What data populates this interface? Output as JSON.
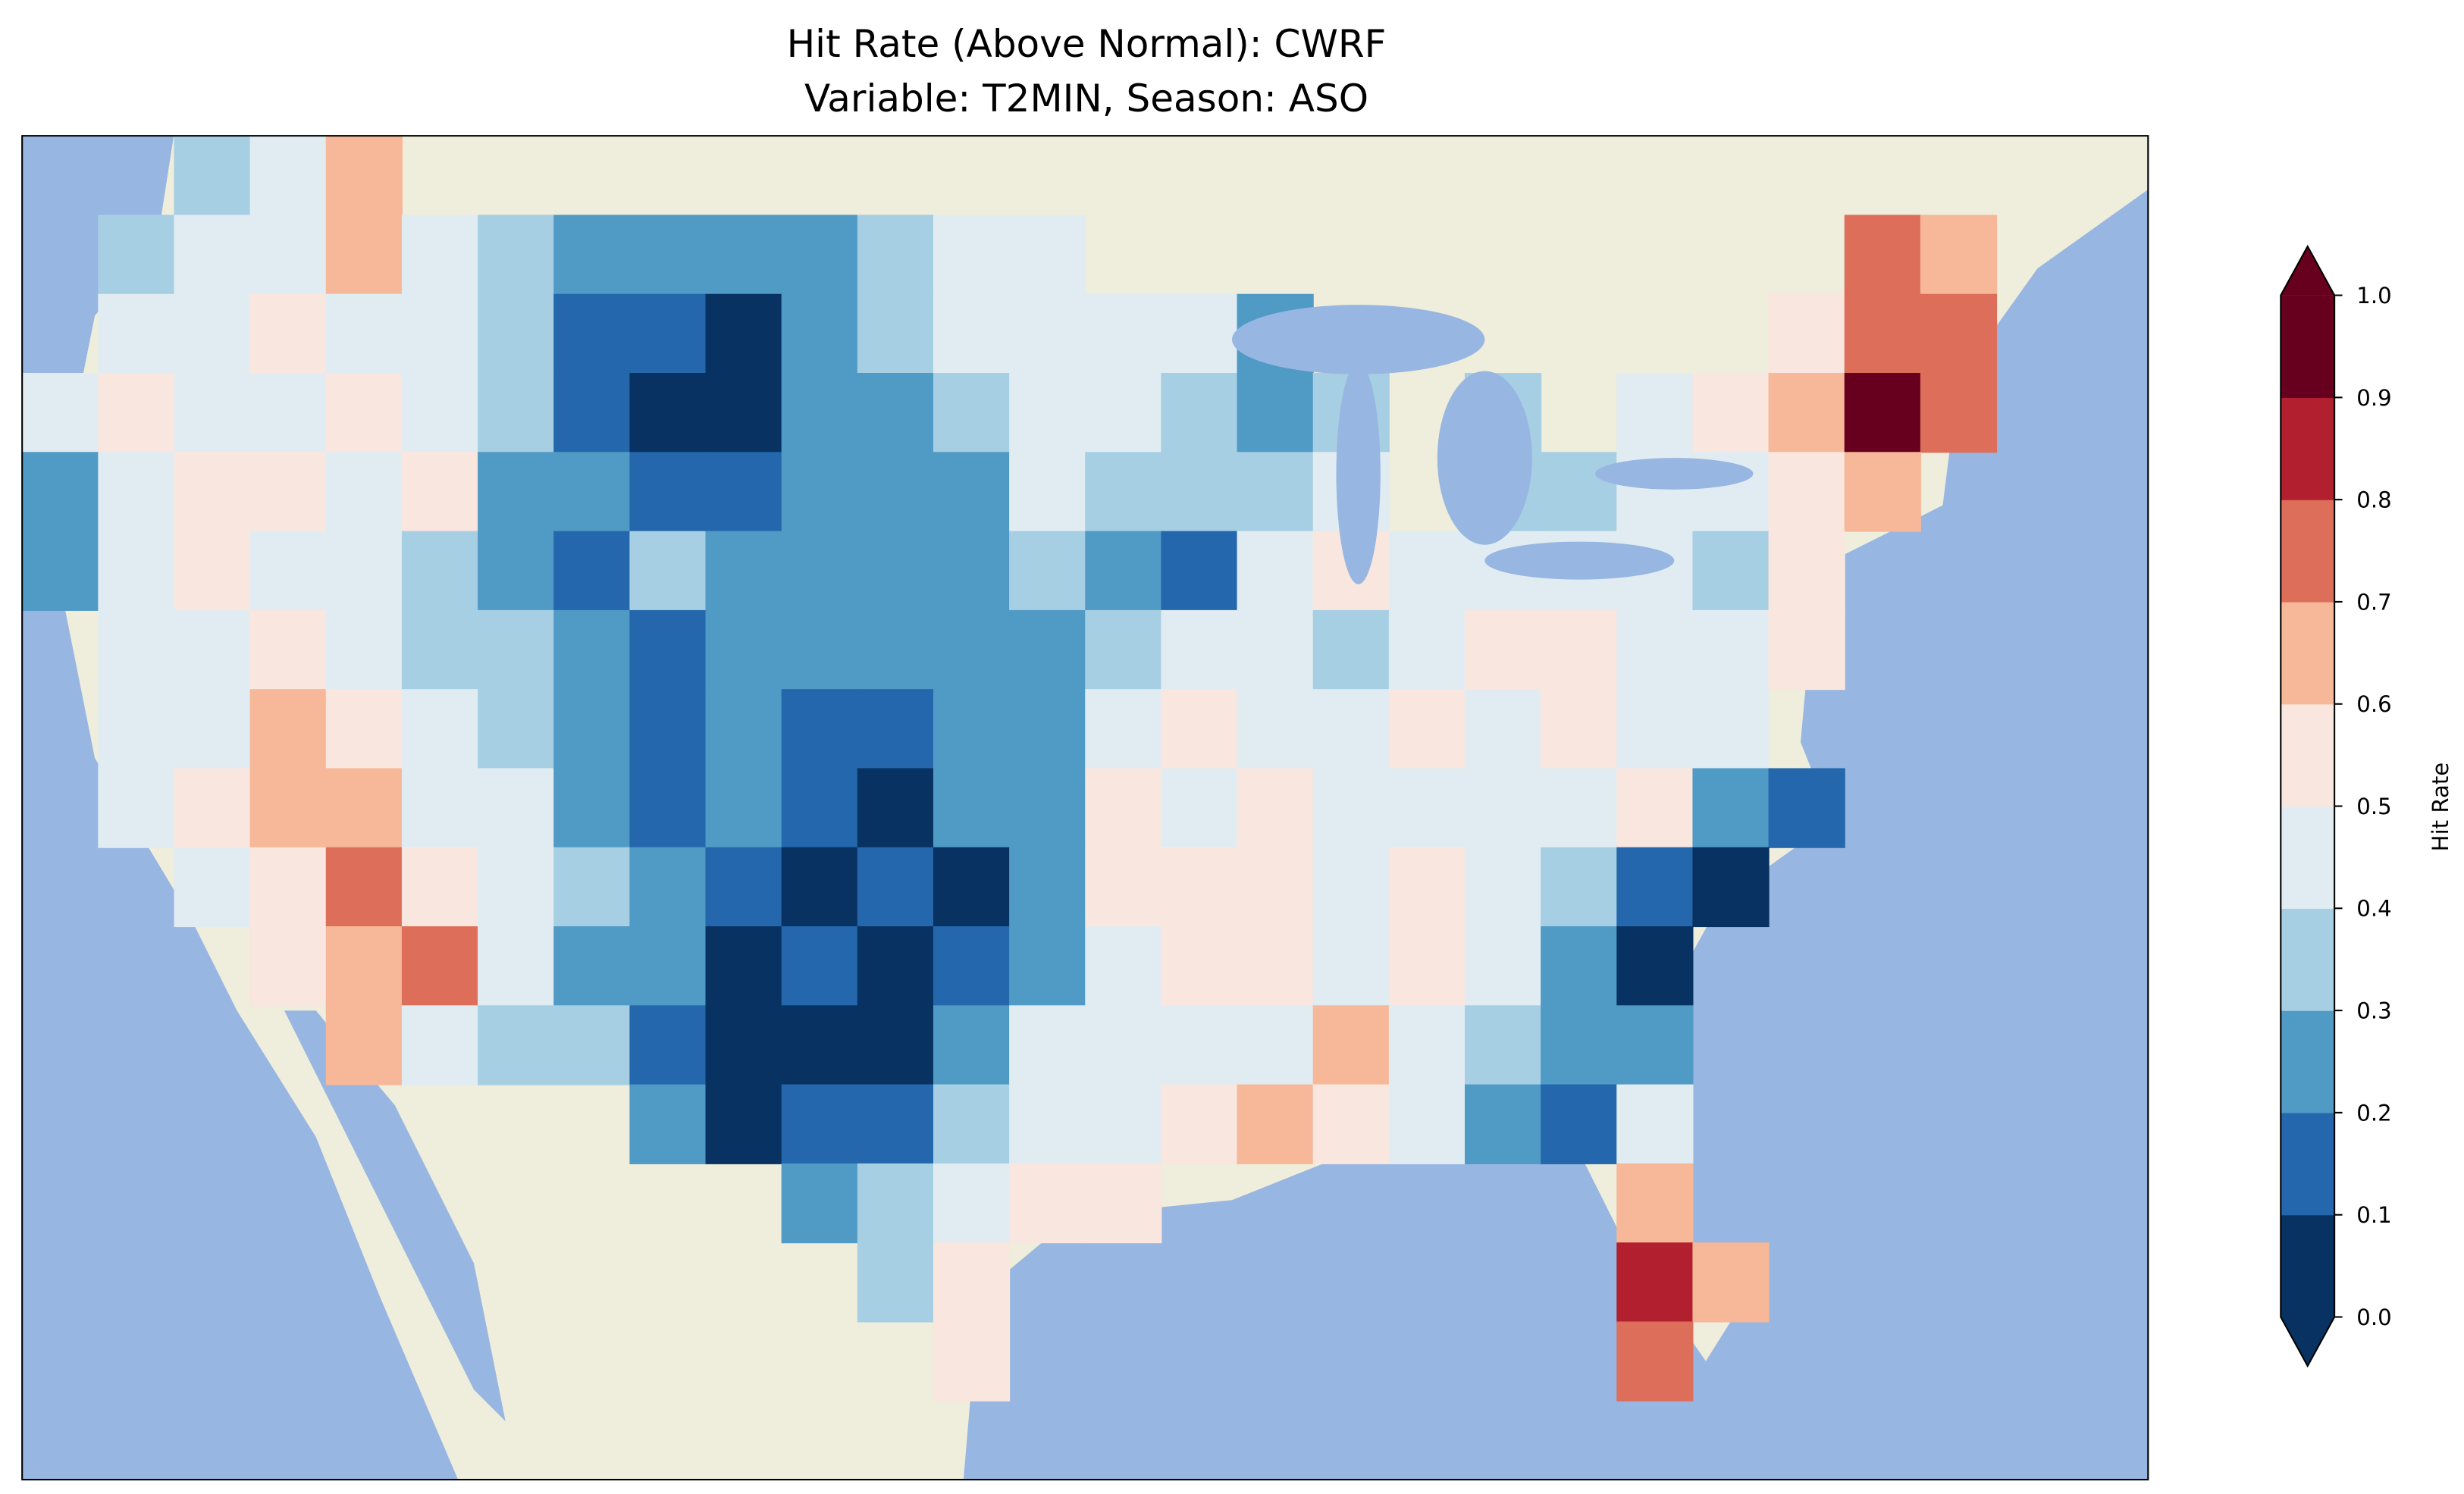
{
  "chart_data": {
    "type": "heatmap",
    "title_line1": "Hit Rate (Above Normal): CWRF",
    "title_line2": "Variable: T2MIN, Season: ASO",
    "colorbar_label": "Hit Rate",
    "colorbar_ticks": [
      "0.0",
      "0.1",
      "0.2",
      "0.3",
      "0.4",
      "0.5",
      "0.6",
      "0.7",
      "0.8",
      "0.9",
      "1.0"
    ],
    "range": [
      0.0,
      1.0
    ],
    "extend": "both",
    "colors": [
      "#083262",
      "#2467ac",
      "#509ac6",
      "#a6cfe3",
      "#e1ecf2",
      "#f9e6de",
      "#f6b898",
      "#dd6f5a",
      "#b21f2e",
      "#67001f"
    ],
    "ocean_color": "#97b6e1",
    "land_color": "#efeddb",
    "grid_values_coarse": [
      [
        null,
        null,
        0.35,
        0.45,
        0.65,
        null,
        null,
        null,
        null,
        null,
        null,
        null,
        null,
        null,
        null,
        null,
        null,
        null,
        null,
        null,
        null,
        null,
        null,
        null,
        null,
        null,
        null,
        null
      ],
      [
        null,
        0.35,
        0.4,
        0.45,
        0.65,
        0.45,
        0.3,
        0.25,
        0.2,
        0.2,
        0.2,
        0.35,
        0.45,
        0.45,
        null,
        null,
        null,
        null,
        null,
        null,
        null,
        null,
        null,
        null,
        0.7,
        0.65,
        null,
        null
      ],
      [
        null,
        0.45,
        0.45,
        0.55,
        0.45,
        0.45,
        0.3,
        0.15,
        0.15,
        0.05,
        0.25,
        0.3,
        0.45,
        0.45,
        0.45,
        0.45,
        0.25,
        null,
        null,
        null,
        null,
        null,
        null,
        0.55,
        0.75,
        0.75,
        null,
        null
      ],
      [
        0.45,
        0.55,
        0.45,
        0.45,
        0.55,
        0.45,
        0.35,
        0.15,
        0.05,
        0.05,
        0.25,
        0.25,
        0.35,
        0.45,
        0.45,
        0.35,
        0.25,
        0.35,
        null,
        0.35,
        null,
        0.45,
        0.55,
        0.65,
        0.95,
        0.75,
        null,
        null
      ],
      [
        0.25,
        0.45,
        0.55,
        0.55,
        0.45,
        0.55,
        0.25,
        0.25,
        0.15,
        0.15,
        0.25,
        0.25,
        0.25,
        0.45,
        0.35,
        0.35,
        0.35,
        0.45,
        null,
        0.35,
        0.35,
        0.45,
        0.45,
        0.55,
        0.65,
        null,
        null,
        null
      ],
      [
        0.25,
        0.45,
        0.55,
        0.45,
        0.45,
        0.35,
        0.25,
        0.15,
        0.35,
        0.25,
        0.25,
        0.25,
        0.25,
        0.35,
        0.25,
        0.15,
        0.45,
        0.55,
        0.45,
        0.45,
        0.45,
        0.45,
        0.35,
        0.55,
        null,
        null,
        null,
        null
      ],
      [
        null,
        0.45,
        0.45,
        0.55,
        0.45,
        0.35,
        0.35,
        0.25,
        0.15,
        0.25,
        0.25,
        0.25,
        0.25,
        0.25,
        0.35,
        0.45,
        0.45,
        0.35,
        0.45,
        0.55,
        0.55,
        0.45,
        0.45,
        0.55,
        null,
        null,
        null,
        null
      ],
      [
        null,
        0.45,
        0.45,
        0.65,
        0.55,
        0.45,
        0.35,
        0.25,
        0.15,
        0.25,
        0.15,
        0.15,
        0.25,
        0.25,
        0.45,
        0.55,
        0.45,
        0.45,
        0.55,
        0.45,
        0.55,
        0.45,
        0.45,
        null,
        null,
        null,
        null,
        null
      ],
      [
        null,
        0.45,
        0.55,
        0.65,
        0.65,
        0.45,
        0.45,
        0.25,
        0.15,
        0.25,
        0.15,
        0.05,
        0.25,
        0.25,
        0.55,
        0.45,
        0.55,
        0.45,
        0.45,
        0.45,
        0.45,
        0.55,
        0.25,
        0.15,
        null,
        null,
        null,
        null
      ],
      [
        null,
        null,
        0.45,
        0.55,
        0.75,
        0.55,
        0.45,
        0.35,
        0.25,
        0.15,
        0.05,
        0.15,
        0.05,
        0.25,
        0.55,
        0.55,
        0.55,
        0.45,
        0.55,
        0.45,
        0.35,
        0.15,
        0.05,
        null,
        null,
        null,
        null,
        null
      ],
      [
        null,
        null,
        null,
        0.55,
        0.65,
        0.75,
        0.45,
        0.25,
        0.25,
        0.05,
        0.15,
        0.05,
        0.15,
        0.25,
        0.45,
        0.55,
        0.55,
        0.45,
        0.55,
        0.45,
        0.25,
        0.05,
        null,
        null,
        null,
        null,
        null,
        null
      ],
      [
        null,
        null,
        null,
        null,
        0.65,
        0.45,
        0.35,
        0.35,
        0.15,
        0.05,
        0.05,
        0.05,
        0.25,
        0.45,
        0.45,
        0.45,
        0.45,
        0.65,
        0.45,
        0.35,
        0.25,
        0.25,
        null,
        null,
        null,
        null,
        null,
        null
      ],
      [
        null,
        null,
        null,
        null,
        null,
        null,
        null,
        null,
        0.25,
        0.05,
        0.15,
        0.15,
        0.35,
        0.45,
        0.45,
        0.55,
        0.65,
        0.55,
        0.45,
        0.25,
        0.15,
        0.45,
        null,
        null,
        null,
        null,
        null,
        null
      ],
      [
        null,
        null,
        null,
        null,
        null,
        null,
        null,
        null,
        null,
        null,
        0.25,
        0.35,
        0.45,
        0.55,
        0.55,
        null,
        null,
        null,
        null,
        null,
        null,
        0.65,
        null,
        null,
        null,
        null,
        null,
        null
      ],
      [
        null,
        null,
        null,
        null,
        null,
        null,
        null,
        null,
        null,
        null,
        null,
        0.35,
        0.55,
        null,
        null,
        null,
        null,
        null,
        null,
        null,
        null,
        0.85,
        0.65,
        null,
        null,
        null,
        null,
        null
      ],
      [
        null,
        null,
        null,
        null,
        null,
        null,
        null,
        null,
        null,
        null,
        null,
        null,
        0.55,
        null,
        null,
        null,
        null,
        null,
        null,
        null,
        null,
        0.75,
        null,
        null,
        null,
        null,
        null,
        null
      ],
      [
        null,
        null,
        null,
        null,
        null,
        null,
        null,
        null,
        null,
        null,
        null,
        null,
        null,
        null,
        null,
        null,
        null,
        null,
        null,
        null,
        null,
        null,
        null,
        null,
        null,
        null,
        null,
        null
      ]
    ]
  }
}
